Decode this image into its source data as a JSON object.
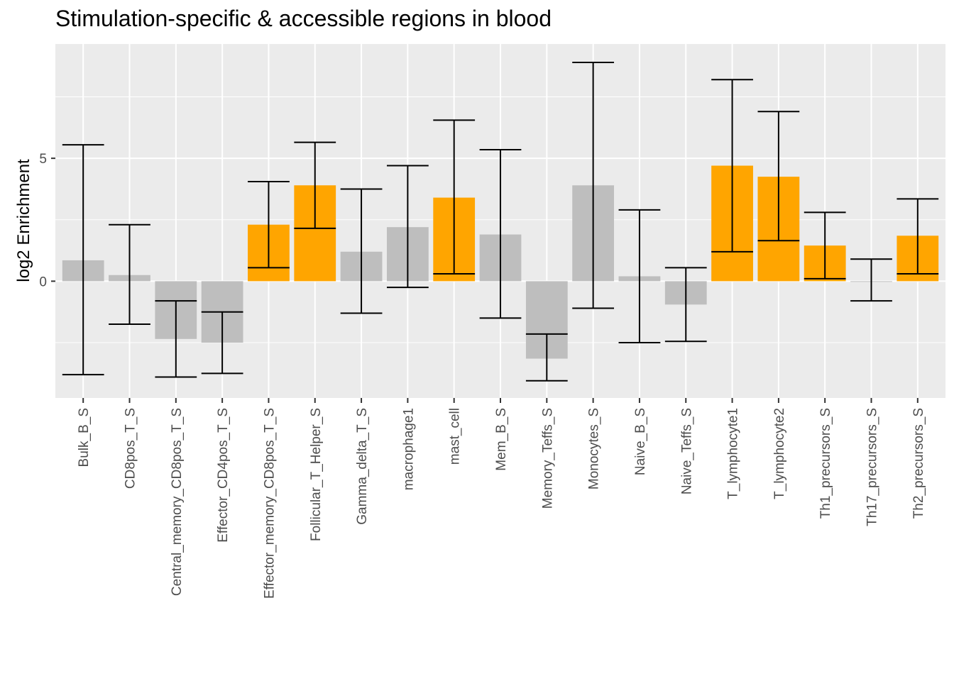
{
  "chart_data": {
    "type": "bar",
    "title": "Stimulation-specific & accessible regions in blood",
    "xlabel": "",
    "ylabel": "log2 Enrichment",
    "ylim": [
      -4.75,
      9.65
    ],
    "yticks": [
      0,
      5
    ],
    "grid": true,
    "colors": {
      "highlight": "#ffa500",
      "default": "#bebebe",
      "panel": "#ebebeb",
      "grid": "#ffffff",
      "errorbar": "#000000"
    },
    "categories": [
      "Bulk_B_S",
      "CD8pos_T_S",
      "Central_memory_CD8pos_T_S",
      "Effector_CD4pos_T_S",
      "Effector_memory_CD8pos_T_S",
      "Follicular_T_Helper_S",
      "Gamma_delta_T_S",
      "macrophage1",
      "mast_cell",
      "Mem_B_S",
      "Memory_Teffs_S",
      "Monocytes_S",
      "Naive_B_S",
      "Naive_Teffs_S",
      "T_lymphocyte1",
      "T_lymphocyte2",
      "Th1_precursors_S",
      "Th17_precursors_S",
      "Th2_precursors_S"
    ],
    "values": [
      0.85,
      0.25,
      -2.35,
      -2.5,
      2.3,
      3.9,
      1.2,
      2.2,
      3.4,
      1.9,
      -3.15,
      3.9,
      0.2,
      -0.95,
      4.7,
      4.25,
      1.45,
      -0.02,
      1.85
    ],
    "lower": [
      -3.8,
      -1.75,
      -3.9,
      -3.75,
      0.55,
      2.15,
      -1.3,
      -0.25,
      0.3,
      -1.5,
      -4.05,
      -1.1,
      -2.5,
      -2.45,
      1.2,
      1.65,
      0.1,
      -0.8,
      0.3
    ],
    "upper": [
      5.55,
      2.3,
      -0.8,
      -1.25,
      4.05,
      5.65,
      3.75,
      4.7,
      6.55,
      5.35,
      -2.15,
      8.9,
      2.9,
      0.55,
      8.2,
      6.9,
      2.8,
      0.9,
      3.35
    ],
    "highlighted": [
      false,
      false,
      false,
      false,
      true,
      true,
      false,
      false,
      true,
      false,
      false,
      false,
      false,
      false,
      true,
      true,
      true,
      false,
      true
    ]
  }
}
